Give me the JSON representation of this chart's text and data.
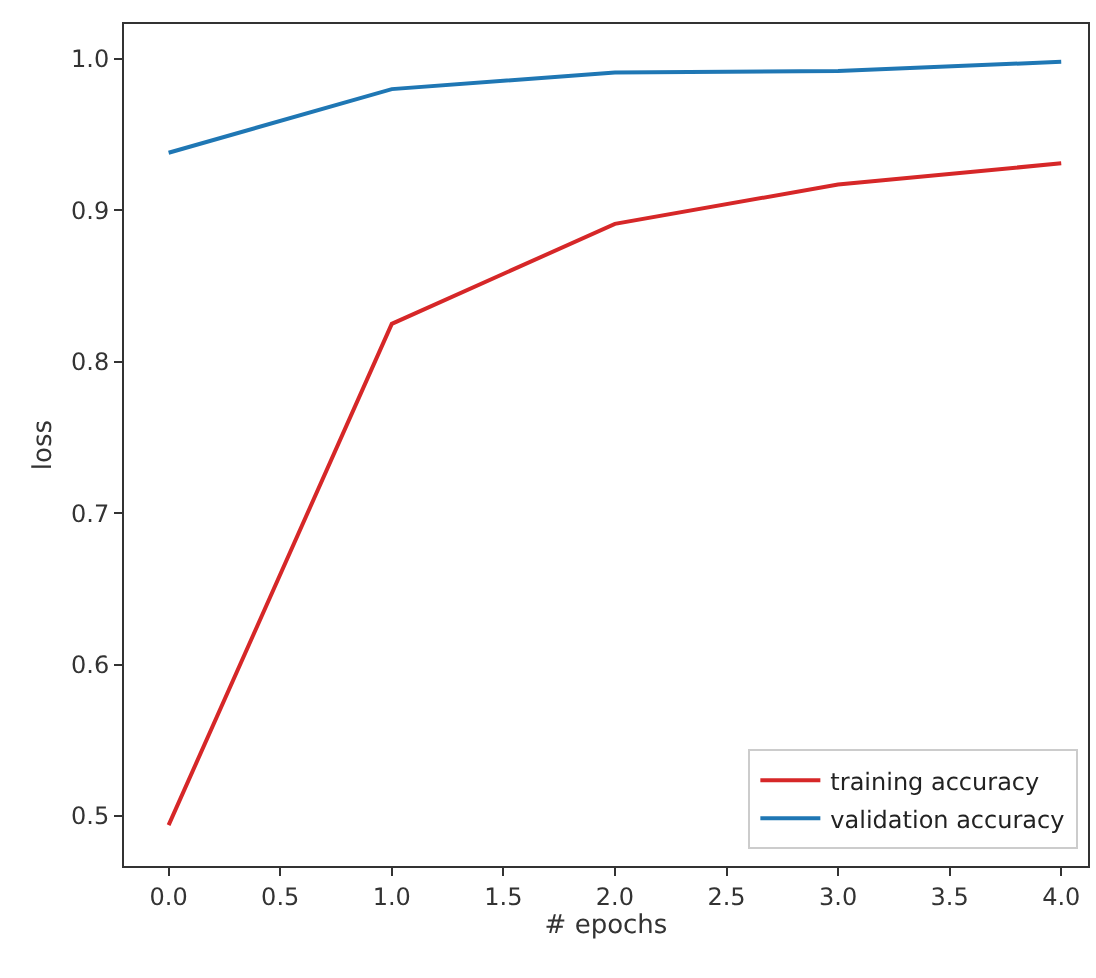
{
  "chart_data": {
    "type": "line",
    "xlabel": "# epochs",
    "ylabel": "loss",
    "x": [
      0,
      1,
      2,
      3,
      4
    ],
    "series": [
      {
        "name": "training accuracy",
        "color": "#d62728",
        "values": [
          0.494,
          0.825,
          0.891,
          0.917,
          0.931
        ]
      },
      {
        "name": "validation accuracy",
        "color": "#1f77b4",
        "values": [
          0.938,
          0.98,
          0.991,
          0.992,
          0.998
        ]
      }
    ],
    "xlim": [
      -0.2,
      4.12
    ],
    "ylim": [
      0.467,
      1.023
    ],
    "xticks": [
      {
        "value": 0,
        "label": "0.0"
      },
      0.5,
      {
        "value": 1,
        "label": "1.0"
      },
      1.5,
      {
        "value": 2,
        "label": "2.0"
      },
      2.5,
      {
        "value": 3,
        "label": "3.0"
      },
      3.5,
      {
        "value": 4,
        "label": "4.0"
      }
    ],
    "yticks": [
      0.5,
      0.6,
      0.7,
      0.8,
      0.9,
      {
        "value": 1,
        "label": "1.0"
      }
    ],
    "legend": "bottom right",
    "marker": "none",
    "line_style": "solid"
  }
}
